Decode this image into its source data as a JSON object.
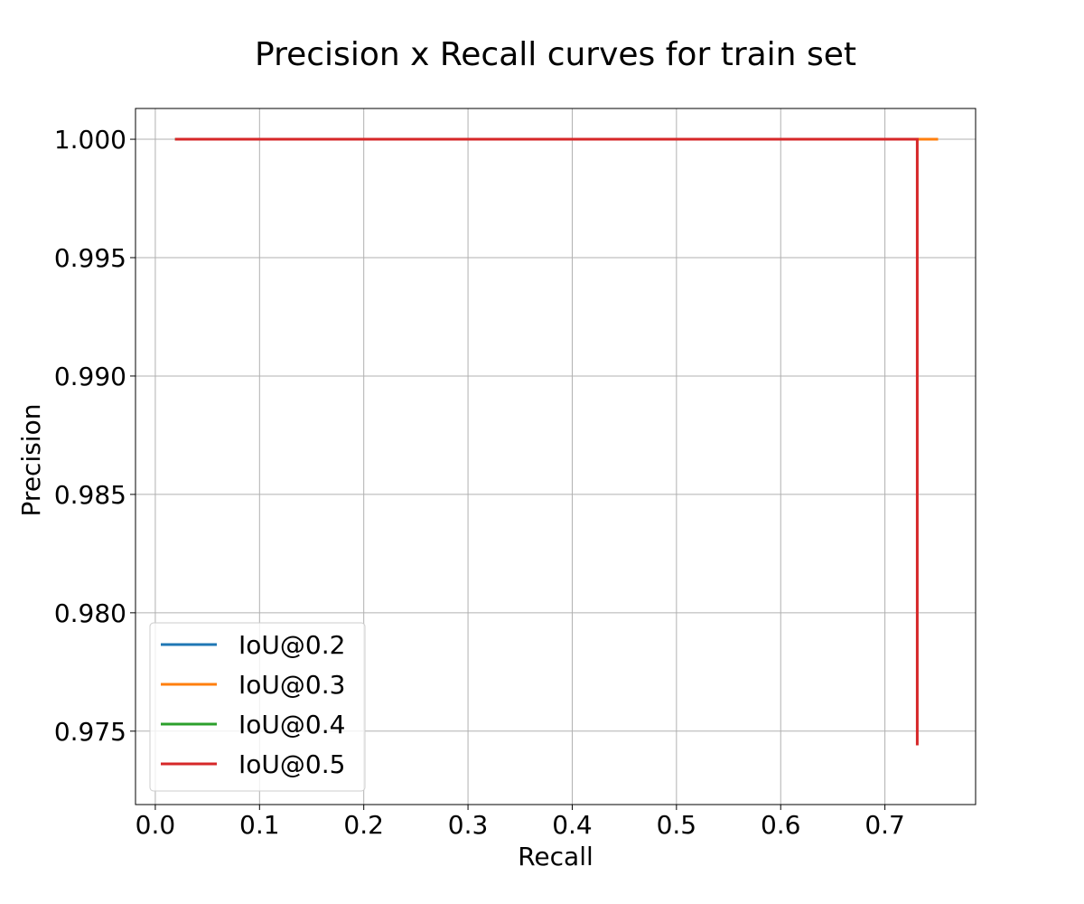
{
  "chart_data": {
    "type": "line",
    "title": "Precision x Recall curves for train set",
    "xlabel": "Recall",
    "ylabel": "Precision",
    "xlim": [
      -0.019,
      0.787
    ],
    "ylim": [
      0.9719,
      1.0013
    ],
    "x_ticks": [
      0.0,
      0.1,
      0.2,
      0.3,
      0.4,
      0.5,
      0.6,
      0.7
    ],
    "x_tick_labels": [
      "0.0",
      "0.1",
      "0.2",
      "0.3",
      "0.4",
      "0.5",
      "0.6",
      "0.7"
    ],
    "y_ticks": [
      0.975,
      0.98,
      0.985,
      0.99,
      0.995,
      1.0
    ],
    "y_tick_labels": [
      "0.975",
      "0.980",
      "0.985",
      "0.990",
      "0.995",
      "1.000"
    ],
    "grid": true,
    "legend_position": "lower-left",
    "series": [
      {
        "name": "IoU@0.2",
        "color": "#1f77b4",
        "x": [
          0.019,
          0.751
        ],
        "y": [
          1.0,
          1.0
        ]
      },
      {
        "name": "IoU@0.3",
        "color": "#ff7f0e",
        "x": [
          0.019,
          0.751
        ],
        "y": [
          1.0,
          1.0
        ]
      },
      {
        "name": "IoU@0.4",
        "color": "#2ca02c",
        "x": [
          0.019,
          0.731
        ],
        "y": [
          1.0,
          1.0
        ]
      },
      {
        "name": "IoU@0.5",
        "color": "#d62728",
        "x": [
          0.019,
          0.731,
          0.731
        ],
        "y": [
          1.0,
          1.0,
          0.9744
        ]
      }
    ]
  }
}
